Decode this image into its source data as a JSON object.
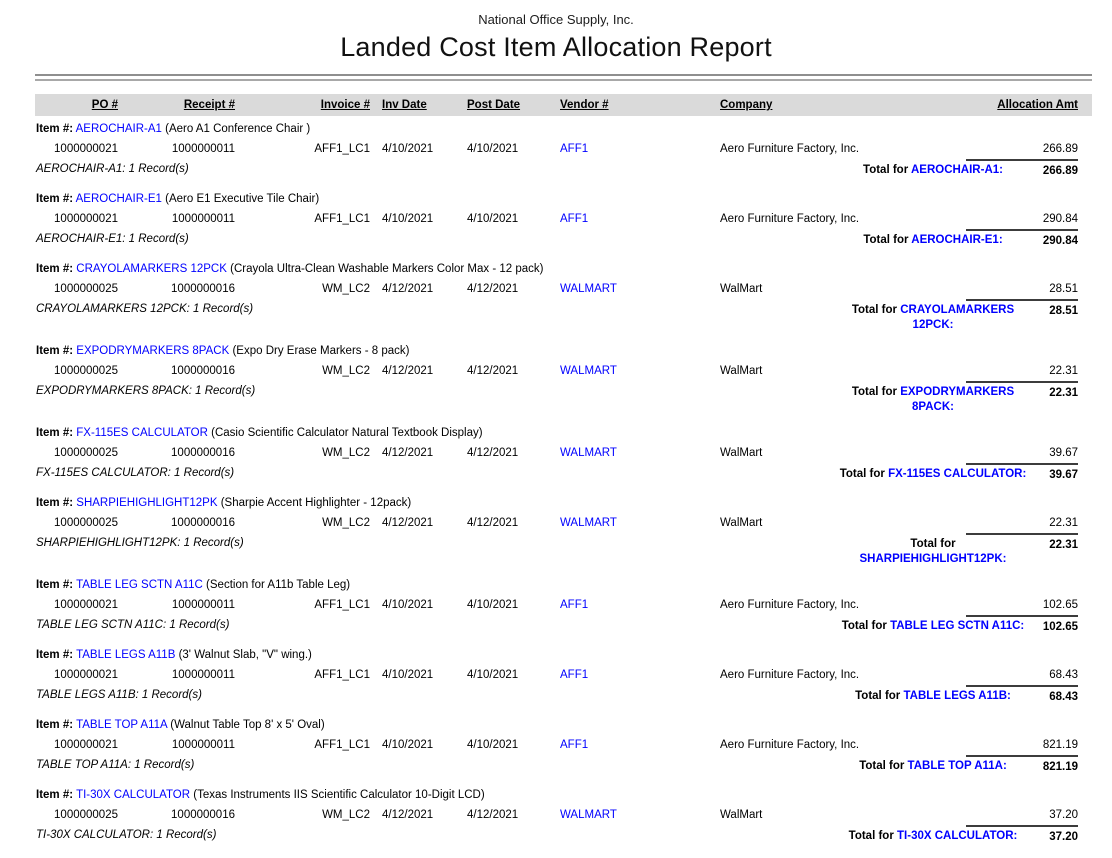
{
  "report": {
    "company_name": "National Office Supply, Inc.",
    "title": "Landed Cost Item Allocation Report"
  },
  "labels": {
    "item_prefix": "Item #:",
    "total_prefix": "Total for"
  },
  "columns": {
    "po": "PO #",
    "receipt": "Receipt #",
    "invoice": "Invoice #",
    "inv_date": "Inv Date",
    "post_date": "Post Date",
    "vendor": "Vendor #",
    "company": "Company",
    "alloc": "Allocation Amt"
  },
  "colors": {
    "link_blue": "#0000FF",
    "header_band_gray": "#DADADA",
    "text_black": "#000000"
  },
  "groups": [
    {
      "code": "AEROCHAIR-A1",
      "desc": "(Aero A1 Conference Chair )",
      "row": {
        "po": "1000000021",
        "receipt": "1000000011",
        "invoice": "AFF1_LC1",
        "inv_date": "4/10/2021",
        "post_date": "4/10/2021",
        "vendor": "AFF1",
        "company": "Aero Furniture Factory, Inc.",
        "amount": "266.89"
      },
      "records": "AEROCHAIR-A1: 1 Record(s)",
      "total": {
        "code_line1": "AEROCHAIR-A1:",
        "code_line2": "",
        "amount": "266.89"
      }
    },
    {
      "code": "AEROCHAIR-E1",
      "desc": "(Aero E1 Executive Tile Chair)",
      "row": {
        "po": "1000000021",
        "receipt": "1000000011",
        "invoice": "AFF1_LC1",
        "inv_date": "4/10/2021",
        "post_date": "4/10/2021",
        "vendor": "AFF1",
        "company": "Aero Furniture Factory, Inc.",
        "amount": "290.84"
      },
      "records": "AEROCHAIR-E1: 1 Record(s)",
      "total": {
        "code_line1": "AEROCHAIR-E1:",
        "code_line2": "",
        "amount": "290.84"
      }
    },
    {
      "code": "CRAYOLAMARKERS 12PCK",
      "desc": "(Crayola Ultra-Clean Washable Markers Color Max - 12 pack)",
      "row": {
        "po": "1000000025",
        "receipt": "1000000016",
        "invoice": "WM_LC2",
        "inv_date": "4/12/2021",
        "post_date": "4/12/2021",
        "vendor": "WALMART",
        "company": "WalMart",
        "amount": "28.51"
      },
      "records": "CRAYOLAMARKERS 12PCK: 1 Record(s)",
      "total": {
        "code_line1": "CRAYOLAMARKERS",
        "code_line2": "12PCK:",
        "amount": "28.51"
      }
    },
    {
      "code": "EXPODRYMARKERS 8PACK",
      "desc": "(Expo Dry Erase Markers - 8 pack)",
      "row": {
        "po": "1000000025",
        "receipt": "1000000016",
        "invoice": "WM_LC2",
        "inv_date": "4/12/2021",
        "post_date": "4/12/2021",
        "vendor": "WALMART",
        "company": "WalMart",
        "amount": "22.31"
      },
      "records": "EXPODRYMARKERS 8PACK: 1 Record(s)",
      "total": {
        "code_line1": "EXPODRYMARKERS",
        "code_line2": "8PACK:",
        "amount": "22.31"
      }
    },
    {
      "code": "FX-115ES CALCULATOR",
      "desc": "(Casio Scientific Calculator Natural Textbook Display)",
      "row": {
        "po": "1000000025",
        "receipt": "1000000016",
        "invoice": "WM_LC2",
        "inv_date": "4/12/2021",
        "post_date": "4/12/2021",
        "vendor": "WALMART",
        "company": "WalMart",
        "amount": "39.67"
      },
      "records": "FX-115ES CALCULATOR: 1 Record(s)",
      "total": {
        "code_line1": "FX-115ES CALCULATOR:",
        "code_line2": "",
        "amount": "39.67"
      }
    },
    {
      "code": "SHARPIEHIGHLIGHT12PK",
      "desc": "(Sharpie Accent Highlighter - 12pack)",
      "row": {
        "po": "1000000025",
        "receipt": "1000000016",
        "invoice": "WM_LC2",
        "inv_date": "4/12/2021",
        "post_date": "4/12/2021",
        "vendor": "WALMART",
        "company": "WalMart",
        "amount": "22.31"
      },
      "records": "SHARPIEHIGHLIGHT12PK: 1 Record(s)",
      "total": {
        "code_line1": "",
        "code_line2": "SHARPIEHIGHLIGHT12PK:",
        "amount": "22.31"
      }
    },
    {
      "code": "TABLE LEG SCTN A11C",
      "desc": "(Section for A11b Table Leg)",
      "row": {
        "po": "1000000021",
        "receipt": "1000000011",
        "invoice": "AFF1_LC1",
        "inv_date": "4/10/2021",
        "post_date": "4/10/2021",
        "vendor": "AFF1",
        "company": "Aero Furniture Factory, Inc.",
        "amount": "102.65"
      },
      "records": "TABLE LEG SCTN A11C: 1 Record(s)",
      "total": {
        "code_line1": "TABLE LEG SCTN A11C:",
        "code_line2": "",
        "amount": "102.65"
      }
    },
    {
      "code": "TABLE LEGS A11B",
      "desc": "(3' Walnut Slab, \"V\" wing.)",
      "row": {
        "po": "1000000021",
        "receipt": "1000000011",
        "invoice": "AFF1_LC1",
        "inv_date": "4/10/2021",
        "post_date": "4/10/2021",
        "vendor": "AFF1",
        "company": "Aero Furniture Factory, Inc.",
        "amount": "68.43"
      },
      "records": "TABLE LEGS A11B: 1 Record(s)",
      "total": {
        "code_line1": "TABLE LEGS A11B:",
        "code_line2": "",
        "amount": "68.43"
      }
    },
    {
      "code": "TABLE TOP A11A",
      "desc": "(Walnut Table Top 8' x 5' Oval)",
      "row": {
        "po": "1000000021",
        "receipt": "1000000011",
        "invoice": "AFF1_LC1",
        "inv_date": "4/10/2021",
        "post_date": "4/10/2021",
        "vendor": "AFF1",
        "company": "Aero Furniture Factory, Inc.",
        "amount": "821.19"
      },
      "records": "TABLE TOP A11A: 1 Record(s)",
      "total": {
        "code_line1": "TABLE TOP A11A:",
        "code_line2": "",
        "amount": "821.19"
      }
    },
    {
      "code": "TI-30X CALCULATOR",
      "desc": "(Texas Instruments IIS Scientific Calculator 10-Digit LCD)",
      "row": {
        "po": "1000000025",
        "receipt": "1000000016",
        "invoice": "WM_LC2",
        "inv_date": "4/12/2021",
        "post_date": "4/12/2021",
        "vendor": "WALMART",
        "company": "WalMart",
        "amount": "37.20"
      },
      "records": "TI-30X CALCULATOR: 1 Record(s)",
      "total": {
        "code_line1": "TI-30X CALCULATOR:",
        "code_line2": "",
        "amount": "37.20"
      }
    }
  ]
}
